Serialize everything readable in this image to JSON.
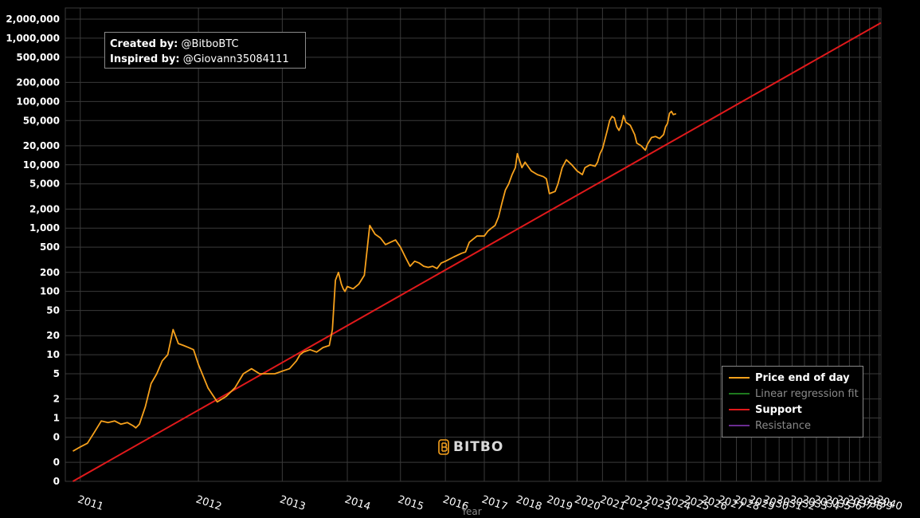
{
  "colors": {
    "background": "#000000",
    "grid": "#3a3a3a",
    "axis_text": "#ffffff",
    "price": "#f7a11c",
    "regression": "#1e7a1e",
    "support": "#e0191b",
    "resistance": "#6a2c91"
  },
  "credits": {
    "created_label": "Created by:",
    "created_value": "@BitboBTC",
    "inspired_label": "Inspired by:",
    "inspired_value": "@Giovann35084111"
  },
  "watermark": {
    "icon": "bitbo-logo-icon",
    "text": "BITBO"
  },
  "chart_data": {
    "type": "line",
    "title": "",
    "xlabel": "Year",
    "ylabel": "",
    "y_scale": "log",
    "y_tick_labels": [
      "2,000,000",
      "1,000,000",
      "500,000",
      "200,000",
      "100,000",
      "50,000",
      "20,000",
      "10,000",
      "5,000",
      "2,000",
      "1,000",
      "500",
      "200",
      "100",
      "50",
      "20",
      "10",
      "5",
      "2",
      "1",
      "0",
      "0",
      "0"
    ],
    "y_tick_values": [
      2000000,
      1000000,
      500000,
      200000,
      100000,
      50000,
      20000,
      10000,
      5000,
      2000,
      1000,
      500,
      200,
      100,
      50,
      20,
      10,
      5,
      2,
      1,
      0.5,
      0.2,
      0.1
    ],
    "ylim": [
      0.1,
      3000000
    ],
    "x_scale": "log (time since genesis)",
    "x_ticks": [
      "2011",
      "2012",
      "2013",
      "2014",
      "2015",
      "2016",
      "2017",
      "2018",
      "2019",
      "2020",
      "2021",
      "2022",
      "2023",
      "2024",
      "2025",
      "2026",
      "2027",
      "2028",
      "2029",
      "2030",
      "2031",
      "2032",
      "2033",
      "2034",
      "2035",
      "2036",
      "2037",
      "2038",
      "2039",
      "2040"
    ],
    "x_tick_years": [
      2011,
      2012,
      2013,
      2014,
      2015,
      2016,
      2017,
      2018,
      2019,
      2020,
      2021,
      2022,
      2023,
      2024,
      2025,
      2026,
      2027,
      2028,
      2029,
      2030,
      2031,
      2032,
      2033,
      2034,
      2035,
      2036,
      2037,
      2038,
      2039,
      2040
    ],
    "xlim": [
      2010.9,
      2040.2
    ],
    "legend": {
      "position": "bottom-right",
      "entries": [
        {
          "label": "Price end of day",
          "color": "#f7a11c",
          "visible": true
        },
        {
          "label": "Linear regression fit",
          "color": "#1e7a1e",
          "visible": false
        },
        {
          "label": "Support",
          "color": "#e0191b",
          "visible": true
        },
        {
          "label": "Resistance",
          "color": "#6a2c91",
          "visible": false
        }
      ]
    },
    "series": [
      {
        "name": "Price end of day",
        "x": [
          2010.95,
          2011.0,
          2011.05,
          2011.1,
          2011.15,
          2011.2,
          2011.25,
          2011.3,
          2011.35,
          2011.4,
          2011.42,
          2011.45,
          2011.5,
          2011.55,
          2011.6,
          2011.65,
          2011.7,
          2011.75,
          2011.8,
          2011.85,
          2011.9,
          2011.95,
          2012.0,
          2012.1,
          2012.2,
          2012.3,
          2012.4,
          2012.5,
          2012.6,
          2012.7,
          2012.8,
          2012.9,
          2013.0,
          2013.1,
          2013.2,
          2013.25,
          2013.3,
          2013.4,
          2013.5,
          2013.6,
          2013.7,
          2013.75,
          2013.8,
          2013.85,
          2013.9,
          2013.93,
          2013.96,
          2014.0,
          2014.1,
          2014.2,
          2014.3,
          2014.4,
          2014.5,
          2014.6,
          2014.7,
          2014.8,
          2014.9,
          2015.0,
          2015.1,
          2015.2,
          2015.3,
          2015.4,
          2015.5,
          2015.6,
          2015.7,
          2015.8,
          2015.9,
          2016.0,
          2016.2,
          2016.4,
          2016.5,
          2016.6,
          2016.8,
          2017.0,
          2017.1,
          2017.2,
          2017.3,
          2017.4,
          2017.5,
          2017.6,
          2017.7,
          2017.8,
          2017.9,
          2017.96,
          2018.0,
          2018.1,
          2018.2,
          2018.4,
          2018.6,
          2018.8,
          2018.9,
          2019.0,
          2019.2,
          2019.3,
          2019.45,
          2019.6,
          2019.8,
          2020.0,
          2020.2,
          2020.3,
          2020.5,
          2020.7,
          2020.8,
          2020.9,
          2021.0,
          2021.1,
          2021.2,
          2021.3,
          2021.4,
          2021.5,
          2021.6,
          2021.7,
          2021.8,
          2021.9,
          2022.0,
          2022.2,
          2022.4,
          2022.5,
          2022.7,
          2022.9,
          2023.0,
          2023.2,
          2023.4,
          2023.6,
          2023.8,
          2023.9,
          2024.0,
          2024.1,
          2024.2,
          2024.3,
          2024.45
        ],
        "y": [
          0.3,
          0.35,
          0.4,
          0.6,
          0.9,
          0.85,
          0.9,
          0.8,
          0.85,
          0.75,
          0.7,
          0.8,
          1.5,
          3.5,
          5,
          8,
          10,
          25,
          15,
          14,
          13,
          12,
          7,
          3,
          1.8,
          2.2,
          3,
          5,
          6,
          5,
          5,
          5,
          5.5,
          6,
          8,
          10,
          11,
          12,
          11,
          13,
          14,
          25,
          150,
          200,
          130,
          110,
          100,
          120,
          110,
          130,
          180,
          1100,
          800,
          700,
          550,
          600,
          650,
          500,
          350,
          250,
          300,
          280,
          250,
          240,
          250,
          230,
          280,
          300,
          350,
          400,
          420,
          600,
          750,
          750,
          900,
          1000,
          1100,
          1500,
          2500,
          4000,
          5000,
          7000,
          9000,
          15000,
          13000,
          9000,
          11000,
          8000,
          7000,
          6500,
          6000,
          3500,
          3800,
          5000,
          9000,
          12000,
          10000,
          8000,
          7000,
          9000,
          10000,
          9500,
          11000,
          15000,
          18000,
          25000,
          35000,
          50000,
          58000,
          55000,
          40000,
          35000,
          42000,
          60000,
          47000,
          42000,
          30000,
          22000,
          20000,
          17000,
          21000,
          27000,
          28000,
          26000,
          30000,
          40000,
          45000,
          65000,
          70000,
          62000,
          64000
        ]
      },
      {
        "name": "Support",
        "points": [
          [
            2010.95,
            0.1
          ],
          [
            2040.2,
            1750000
          ]
        ]
      }
    ]
  }
}
